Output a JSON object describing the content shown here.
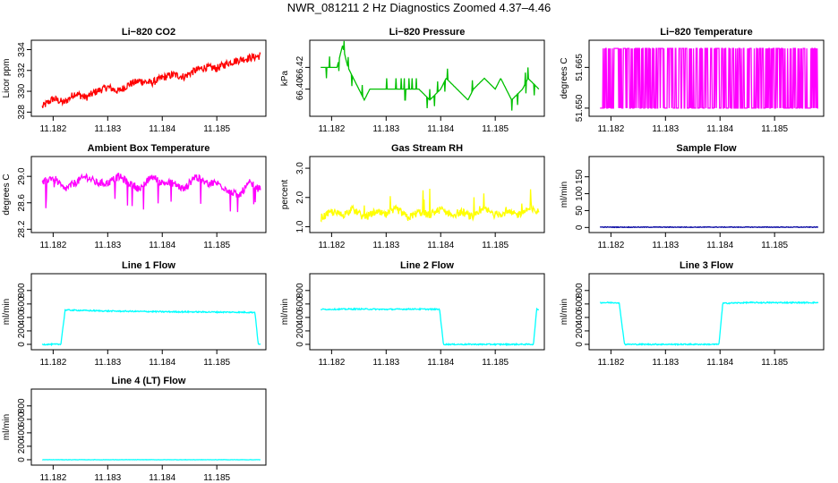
{
  "figure_title": "NWR_081211  2 Hz Diagnostics Zoomed 4.37–4.46",
  "chart_data": [
    {
      "type": "line",
      "title": "Li−820 CO2",
      "ylabel": "Licor ppm",
      "color": "#ff0000",
      "xlim": [
        11.1816,
        11.1859
      ],
      "xticks": [
        11.182,
        11.183,
        11.184,
        11.185
      ],
      "xtick_labels": [
        "11.182",
        "11.183",
        "11.184",
        "11.185"
      ],
      "ylim": [
        327.6,
        334.9
      ],
      "yticks": [
        328,
        330,
        332,
        334
      ],
      "ytick_labels": [
        "328",
        "330",
        "332",
        "334"
      ],
      "series": [
        {
          "name": "CO2",
          "x": [
            11.1818,
            11.182,
            11.1822,
            11.1824,
            11.1826,
            11.1828,
            11.183,
            11.1832,
            11.1834,
            11.1836,
            11.1838,
            11.184,
            11.1842,
            11.1844,
            11.1846,
            11.1848,
            11.185,
            11.1852,
            11.1854,
            11.1856,
            11.1858
          ],
          "y": [
            328.5,
            329.3,
            328.9,
            329.8,
            329.4,
            330.0,
            330.4,
            330.0,
            330.7,
            331.0,
            330.8,
            331.3,
            331.6,
            331.4,
            332.0,
            332.3,
            332.2,
            332.7,
            333.0,
            333.2,
            333.4
          ]
        }
      ]
    },
    {
      "type": "line",
      "title": "Li−820 Pressure",
      "ylabel": "kPa",
      "color": "#00c000",
      "xlim": [
        11.1816,
        11.1859
      ],
      "xticks": [
        11.182,
        11.183,
        11.184,
        11.185
      ],
      "xtick_labels": [
        "11.182",
        "11.183",
        "11.184",
        "11.185"
      ],
      "ylim": [
        66.375,
        66.445
      ],
      "yticks": [
        66.4,
        66.42
      ],
      "ytick_labels": [
        "66.40",
        "66.42"
      ],
      "series": [
        {
          "name": "pressure",
          "x": [
            11.1818,
            11.1821,
            11.1822,
            11.1823,
            11.1824,
            11.1825,
            11.1826,
            11.1827,
            11.183,
            11.1833,
            11.1836,
            11.1838,
            11.184,
            11.1841,
            11.1843,
            11.1845,
            11.1846,
            11.1848,
            11.185,
            11.1851,
            11.1852,
            11.1853,
            11.1855,
            11.1856,
            11.1858
          ],
          "y": [
            66.42,
            66.42,
            66.44,
            66.42,
            66.41,
            66.4,
            66.39,
            66.4,
            66.4,
            66.4,
            66.4,
            66.39,
            66.4,
            66.41,
            66.4,
            66.39,
            66.4,
            66.41,
            66.4,
            66.41,
            66.4,
            66.39,
            66.4,
            66.41,
            66.4
          ]
        }
      ]
    },
    {
      "type": "line",
      "title": "Li−820 Temperature",
      "ylabel": "degrees C",
      "color": "#ff00ff",
      "xlim": [
        11.1816,
        11.1859
      ],
      "xticks": [
        11.182,
        11.183,
        11.184,
        11.185
      ],
      "xtick_labels": [
        "11.182",
        "11.183",
        "11.184",
        "11.185"
      ],
      "ylim": [
        51.647,
        51.675
      ],
      "yticks": [
        51.65,
        51.665
      ],
      "ytick_labels": [
        "51.650",
        "51.665"
      ],
      "series": [
        {
          "name": "temperature",
          "x": [
            11.1818,
            11.1858
          ],
          "y": [
            51.65,
            51.672
          ],
          "note": "toggles between 51.650 and 51.672"
        }
      ]
    },
    {
      "type": "line",
      "title": "Ambient Box Temperature",
      "ylabel": "degrees C",
      "color": "#ff00ff",
      "xlim": [
        11.1816,
        11.1859
      ],
      "xticks": [
        11.182,
        11.183,
        11.184,
        11.185
      ],
      "xtick_labels": [
        "11.182",
        "11.183",
        "11.184",
        "11.185"
      ],
      "ylim": [
        28.15,
        29.3
      ],
      "yticks": [
        28.2,
        28.6,
        29.0
      ],
      "ytick_labels": [
        "28.2",
        "28.6",
        "29.0"
      ],
      "series": [
        {
          "name": "ambient",
          "x": [
            11.1818,
            11.182,
            11.1822,
            11.1824,
            11.1826,
            11.1828,
            11.183,
            11.1832,
            11.1834,
            11.1836,
            11.1838,
            11.184,
            11.1842,
            11.1844,
            11.1846,
            11.1848,
            11.185,
            11.1852,
            11.1854,
            11.1856,
            11.1858
          ],
          "y": [
            28.9,
            29.0,
            28.8,
            28.9,
            29.0,
            28.9,
            28.9,
            29.0,
            28.9,
            28.8,
            29.0,
            28.9,
            28.9,
            28.8,
            29.0,
            28.9,
            28.9,
            28.8,
            28.7,
            28.9,
            28.8
          ]
        }
      ]
    },
    {
      "type": "line",
      "title": "Gas Stream RH",
      "ylabel": "percent",
      "color": "#ffff00",
      "xlim": [
        11.1816,
        11.1859
      ],
      "xticks": [
        11.182,
        11.183,
        11.184,
        11.185
      ],
      "xtick_labels": [
        "11.182",
        "11.183",
        "11.184",
        "11.185"
      ],
      "ylim": [
        0.8,
        3.4
      ],
      "yticks": [
        1.0,
        2.0,
        3.0
      ],
      "ytick_labels": [
        "1.0",
        "2.0",
        "3.0"
      ],
      "series": [
        {
          "name": "rh",
          "x": [
            11.1818,
            11.182,
            11.1822,
            11.1824,
            11.1826,
            11.1828,
            11.183,
            11.1832,
            11.1834,
            11.1836,
            11.1838,
            11.184,
            11.1842,
            11.1844,
            11.1846,
            11.1848,
            11.185,
            11.1852,
            11.1854,
            11.1856,
            11.1858
          ],
          "y": [
            1.3,
            1.5,
            1.4,
            1.6,
            1.3,
            1.5,
            1.4,
            1.6,
            1.3,
            1.5,
            1.4,
            1.6,
            1.4,
            1.5,
            1.3,
            1.6,
            1.4,
            1.5,
            1.4,
            1.6,
            1.5
          ]
        }
      ]
    },
    {
      "type": "line",
      "title": "Sample Flow",
      "ylabel": "ml/min",
      "color": "#0000a0",
      "xlim": [
        11.1816,
        11.1859
      ],
      "xticks": [
        11.182,
        11.183,
        11.184,
        11.185
      ],
      "xtick_labels": [
        "11.182",
        "11.183",
        "11.184",
        "11.185"
      ],
      "ylim": [
        -15,
        210
      ],
      "yticks": [
        0,
        50,
        100,
        150
      ],
      "ytick_labels": [
        "0",
        "50",
        "100",
        "150"
      ],
      "series": [
        {
          "name": "sample_flow",
          "x": [
            11.1818,
            11.1858
          ],
          "y": [
            1,
            1
          ]
        }
      ]
    },
    {
      "type": "line",
      "title": "Line 1 Flow",
      "ylabel": "ml/min",
      "color": "#00ffff",
      "xlim": [
        11.1816,
        11.1859
      ],
      "xticks": [
        11.182,
        11.183,
        11.184,
        11.185
      ],
      "xtick_labels": [
        "11.182",
        "11.183",
        "11.184",
        "11.185"
      ],
      "ylim": [
        -80,
        1050
      ],
      "yticks": [
        0,
        200,
        400,
        600,
        800
      ],
      "ytick_labels": [
        "0",
        "200",
        "400",
        "600",
        "800"
      ],
      "series": [
        {
          "name": "line1",
          "x": [
            11.1818,
            11.18214,
            11.18222,
            11.1825,
            11.183,
            11.184,
            11.185,
            11.1857,
            11.18576,
            11.1858
          ],
          "y": [
            0,
            0,
            510,
            505,
            495,
            485,
            480,
            475,
            0,
            0
          ]
        }
      ]
    },
    {
      "type": "line",
      "title": "Line 2 Flow",
      "ylabel": "ml/min",
      "color": "#00ffff",
      "xlim": [
        11.1816,
        11.1859
      ],
      "xticks": [
        11.182,
        11.183,
        11.184,
        11.185
      ],
      "xtick_labels": [
        "11.182",
        "11.183",
        "11.184",
        "11.185"
      ],
      "ylim": [
        -80,
        1050
      ],
      "yticks": [
        0,
        200,
        400,
        600,
        800
      ],
      "ytick_labels": [
        "0",
        "200",
        "400",
        "600",
        "800"
      ],
      "series": [
        {
          "name": "line2",
          "x": [
            11.1818,
            11.1825,
            11.183,
            11.1835,
            11.18398,
            11.18405,
            11.185,
            11.1857,
            11.18576,
            11.1858
          ],
          "y": [
            520,
            525,
            520,
            525,
            520,
            0,
            0,
            0,
            520,
            520
          ]
        }
      ]
    },
    {
      "type": "line",
      "title": "Line 3 Flow",
      "ylabel": "ml/min",
      "color": "#00ffff",
      "xlim": [
        11.1816,
        11.1859
      ],
      "xticks": [
        11.182,
        11.183,
        11.184,
        11.185
      ],
      "xtick_labels": [
        "11.182",
        "11.183",
        "11.184",
        "11.185"
      ],
      "ylim": [
        -80,
        1050
      ],
      "yticks": [
        0,
        200,
        400,
        600,
        800
      ],
      "ytick_labels": [
        "0",
        "200",
        "400",
        "600",
        "800"
      ],
      "series": [
        {
          "name": "line3",
          "x": [
            11.1818,
            11.18215,
            11.18225,
            11.183,
            11.1835,
            11.18398,
            11.18405,
            11.1845,
            11.185,
            11.1858
          ],
          "y": [
            620,
            620,
            0,
            0,
            0,
            0,
            610,
            620,
            620,
            620
          ]
        }
      ]
    },
    {
      "type": "line",
      "title": "Line 4 (LT) Flow",
      "ylabel": "ml/min",
      "color": "#00ffff",
      "xlim": [
        11.1816,
        11.1859
      ],
      "xticks": [
        11.182,
        11.183,
        11.184,
        11.185
      ],
      "xtick_labels": [
        "11.182",
        "11.183",
        "11.184",
        "11.185"
      ],
      "ylim": [
        -80,
        1050
      ],
      "yticks": [
        0,
        200,
        400,
        600,
        800
      ],
      "ytick_labels": [
        "0",
        "200",
        "400",
        "600",
        "800"
      ],
      "series": [
        {
          "name": "line4",
          "x": [
            11.1818,
            11.1858
          ],
          "y": [
            0,
            0
          ]
        }
      ]
    }
  ]
}
